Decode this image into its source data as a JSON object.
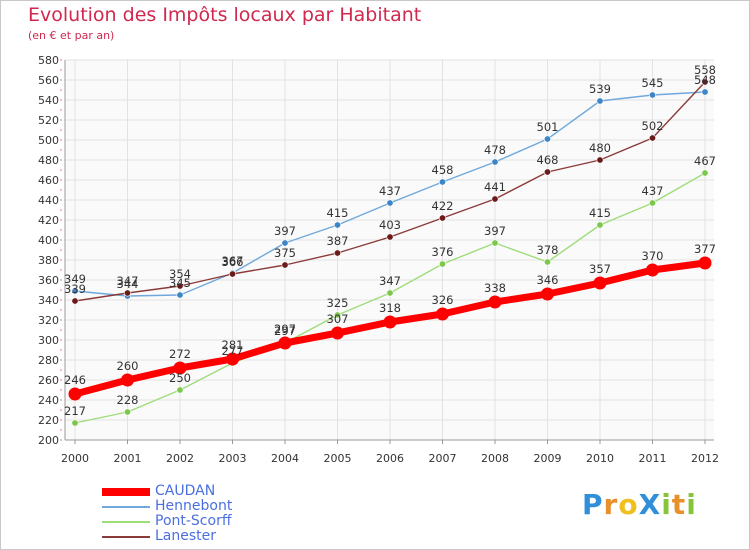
{
  "title": "Evolution des Impôts locaux par Habitant",
  "subtitle": "(en € et par an)",
  "logo": {
    "text": "ProXiti",
    "letters": [
      "P",
      "r",
      "o",
      "X",
      "i",
      "t",
      "i"
    ],
    "letter_colors": [
      "#2f8fd8",
      "#e8902a",
      "#f0c020",
      "#2f8fd8",
      "#86c53a",
      "#e8902a",
      "#86c53a"
    ]
  },
  "chart_data": {
    "type": "line",
    "title": "Evolution des Impôts locaux par Habitant",
    "subtitle": "(en € et par an)",
    "xlabel": "",
    "ylabel": "",
    "x": [
      "2000",
      "2001",
      "2002",
      "2003",
      "2004",
      "2005",
      "2006",
      "2007",
      "2008",
      "2009",
      "2010",
      "2011",
      "2012"
    ],
    "ylim": [
      200,
      580
    ],
    "ytick_step": 20,
    "yticks": [
      "200",
      "220",
      "240",
      "260",
      "280",
      "300",
      "320",
      "340",
      "360",
      "380",
      "400",
      "420",
      "440",
      "460",
      "480",
      "500",
      "520",
      "540",
      "560",
      "580"
    ],
    "grid": true,
    "legend_position": "bottom-left",
    "series": [
      {
        "name": "Hennebont",
        "color": "#6fa8dc",
        "marker": "#3d85c6",
        "values": [
          349,
          344,
          345,
          367,
          397,
          415,
          437,
          458,
          478,
          501,
          539,
          545,
          548
        ],
        "labels": [
          "349",
          "344",
          "345",
          "367",
          "397",
          "415",
          "437",
          "458",
          "478",
          "501",
          "539",
          "545",
          "548"
        ]
      },
      {
        "name": "Lanester",
        "color": "#8b3a3a",
        "marker": "#6b1a1a",
        "values": [
          339,
          347,
          354,
          366,
          375,
          387,
          403,
          422,
          441,
          468,
          480,
          502,
          558
        ],
        "labels": [
          "339",
          "347",
          "354",
          "366",
          "375",
          "387",
          "403",
          "422",
          "441",
          "468",
          "480",
          "502",
          "558"
        ]
      },
      {
        "name": "Pont-Scorff",
        "color": "#9fdc7a",
        "marker": "#7cc84a",
        "values": [
          217,
          228,
          250,
          277,
          297,
          325,
          347,
          376,
          397,
          378,
          415,
          437,
          467
        ],
        "labels": [
          "217",
          "228",
          "250",
          "277",
          "297",
          "325",
          "347",
          "376",
          "397",
          "378",
          "415",
          "437",
          "467"
        ]
      },
      {
        "name": "CAUDAN",
        "color": "#ff0000",
        "marker": "#ff0000",
        "values": [
          246,
          260,
          272,
          281,
          297,
          307,
          318,
          326,
          338,
          346,
          357,
          370,
          377
        ],
        "labels": [
          "246",
          "260",
          "272",
          "281",
          "297",
          "307",
          "318",
          "326",
          "338",
          "346",
          "357",
          "370",
          "377"
        ]
      }
    ],
    "legend": [
      {
        "name": "CAUDAN",
        "color": "#ff0000"
      },
      {
        "name": "Hennebont",
        "color": "#6fa8dc"
      },
      {
        "name": "Pont-Scorff",
        "color": "#9fdc7a"
      },
      {
        "name": "Lanester",
        "color": "#8b3a3a"
      }
    ]
  }
}
